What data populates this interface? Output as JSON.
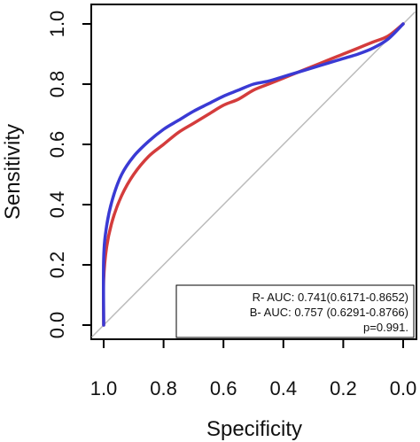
{
  "chart_data": {
    "type": "line",
    "xlabel": "Specificity",
    "ylabel": "Sensitivity",
    "xlim": [
      1.0,
      0.0
    ],
    "ylim": [
      0.0,
      1.0
    ],
    "x_reversed": true,
    "x_ticks": [
      "1.0",
      "0.8",
      "0.6",
      "0.4",
      "0.2",
      "0.0"
    ],
    "y_ticks": [
      "0.0",
      "0.2",
      "0.4",
      "0.6",
      "0.8",
      "1.0"
    ],
    "grid": false,
    "reference_line": {
      "from": [
        1.0,
        0.0
      ],
      "to": [
        0.0,
        1.0
      ],
      "color": "#bbbbbb"
    },
    "series": [
      {
        "key": "R",
        "color": "#d43c3c",
        "specificity": [
          1.0,
          1.0,
          0.99,
          0.97,
          0.94,
          0.9,
          0.85,
          0.8,
          0.75,
          0.7,
          0.65,
          0.6,
          0.55,
          0.5,
          0.45,
          0.4,
          0.35,
          0.3,
          0.25,
          0.2,
          0.15,
          0.1,
          0.05,
          0.0
        ],
        "sensitivity": [
          0.0,
          0.15,
          0.26,
          0.35,
          0.43,
          0.5,
          0.56,
          0.6,
          0.64,
          0.67,
          0.7,
          0.73,
          0.75,
          0.78,
          0.8,
          0.82,
          0.84,
          0.86,
          0.88,
          0.9,
          0.92,
          0.94,
          0.96,
          1.0
        ]
      },
      {
        "key": "B",
        "color": "#3a3ad4",
        "specificity": [
          1.0,
          1.0,
          0.99,
          0.97,
          0.94,
          0.9,
          0.85,
          0.8,
          0.75,
          0.7,
          0.65,
          0.6,
          0.55,
          0.5,
          0.45,
          0.4,
          0.35,
          0.3,
          0.25,
          0.2,
          0.15,
          0.1,
          0.05,
          0.0
        ],
        "sensitivity": [
          0.0,
          0.22,
          0.33,
          0.42,
          0.5,
          0.56,
          0.61,
          0.65,
          0.68,
          0.71,
          0.735,
          0.76,
          0.78,
          0.8,
          0.81,
          0.825,
          0.84,
          0.855,
          0.87,
          0.885,
          0.9,
          0.92,
          0.95,
          1.0
        ]
      }
    ],
    "legend": {
      "placement": "bottom-right",
      "lines": [
        "R- AUC:  0.741(0.6171-0.8652)",
        "B- AUC: 0.757 (0.6291-0.8766)",
        "p=0.991."
      ]
    }
  }
}
